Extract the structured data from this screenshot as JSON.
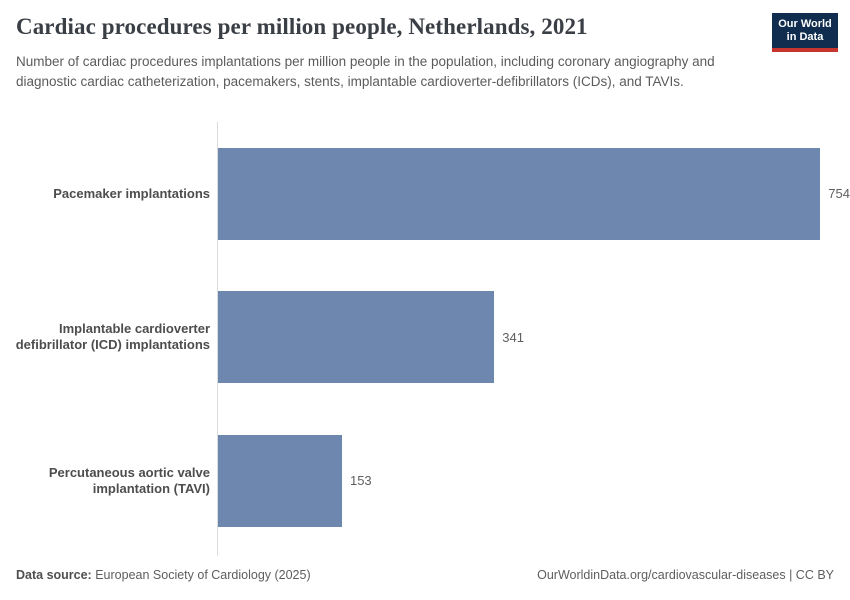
{
  "header": {
    "title": "Cardiac procedures per million people, Netherlands, 2021",
    "subtitle": "Number of cardiac procedures implantations per million people in the population, including coronary angiography and diagnostic cardiac catheterization, pacemakers, stents, implantable cardioverter-defibrillators (ICDs), and TAVIs.",
    "logo": {
      "line1": "Our World",
      "line2": "in Data"
    }
  },
  "chart_data": {
    "type": "bar",
    "orientation": "horizontal",
    "title": "Cardiac procedures per million people, Netherlands, 2021",
    "categories": [
      "Pacemaker implantations",
      "Implantable cardioverter defibrillator (ICD) implantations",
      "Percutaneous aortic valve implantation (TAVI)"
    ],
    "values": [
      754,
      341,
      153
    ],
    "value_labels": [
      "754",
      "341",
      "153"
    ],
    "xlim": [
      0,
      780
    ],
    "grid": false,
    "legend": "none",
    "bar_color": "#6d87ae"
  },
  "footer": {
    "datasource_label": "Data source:",
    "datasource_value": "European Society of Cardiology (2025)",
    "link": "OurWorldinData.org/cardiovascular-diseases | CC BY"
  },
  "colors": {
    "bar": "#6d87ae",
    "title": "#3a3f46",
    "subtitle": "#5b5b5b",
    "axis_line": "#dcdcdc",
    "logo_bg": "#102d4f",
    "logo_accent": "#c5352e"
  }
}
